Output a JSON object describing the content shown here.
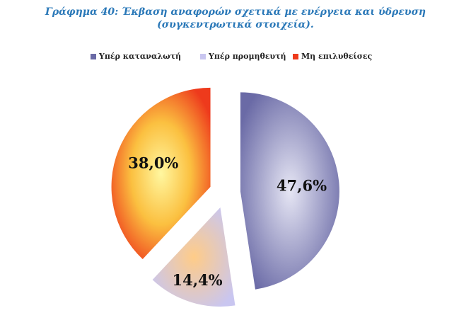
{
  "chart_data": {
    "type": "pie",
    "title": "Γράφημα 40: Έκβαση αναφορών σχετικά με ενέργεια και ύδρευση (συγκεντρωτικά στοιχεία).",
    "categories": [
      "Υπέρ καταναλωτή",
      "Υπέρ προμηθευτή",
      "Μη επιλυθείσες"
    ],
    "values": [
      47.6,
      14.4,
      38.0
    ],
    "value_labels": [
      "47,6%",
      "14,4%",
      "38,0%"
    ],
    "colors": [
      "#6a6aa6",
      "#c9c6f0",
      "#ee3a1c"
    ],
    "legend": "top"
  }
}
